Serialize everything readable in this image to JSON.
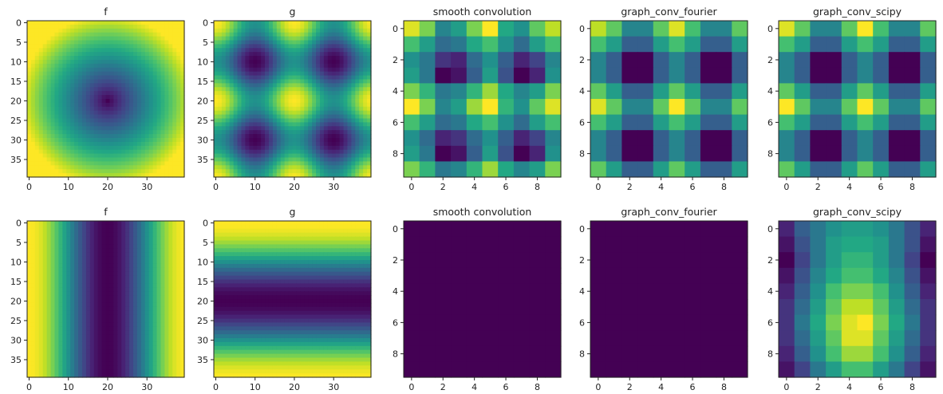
{
  "chart_data": [
    {
      "type": "heatmap",
      "title": "f",
      "rows": 40,
      "cols": 40,
      "pattern": "radial",
      "xticks": [
        0,
        10,
        20,
        30
      ],
      "yticks": [
        0,
        5,
        10,
        15,
        20,
        25,
        30,
        35
      ]
    },
    {
      "type": "heatmap",
      "title": "g",
      "rows": 40,
      "cols": 40,
      "pattern": "egg",
      "xticks": [
        0,
        10,
        20,
        30
      ],
      "yticks": [
        0,
        5,
        10,
        15,
        20,
        25,
        30,
        35
      ]
    },
    {
      "type": "heatmap",
      "title": "smooth convolution",
      "rows": 10,
      "cols": 10,
      "pattern": "grid",
      "values": [
        [
          0.95,
          0.8,
          0.45,
          0.55,
          0.8,
          1.0,
          0.6,
          0.5,
          0.75,
          0.9
        ],
        [
          0.7,
          0.55,
          0.35,
          0.4,
          0.6,
          0.7,
          0.5,
          0.35,
          0.55,
          0.7
        ],
        [
          0.5,
          0.4,
          0.15,
          0.1,
          0.35,
          0.5,
          0.3,
          0.1,
          0.2,
          0.45
        ],
        [
          0.55,
          0.4,
          0.0,
          0.05,
          0.3,
          0.55,
          0.25,
          0.0,
          0.1,
          0.5
        ],
        [
          0.8,
          0.65,
          0.4,
          0.45,
          0.65,
          0.85,
          0.6,
          0.45,
          0.55,
          0.8
        ],
        [
          1.0,
          0.8,
          0.45,
          0.55,
          0.85,
          1.0,
          0.65,
          0.5,
          0.75,
          0.95
        ],
        [
          0.7,
          0.55,
          0.35,
          0.4,
          0.6,
          0.7,
          0.5,
          0.35,
          0.55,
          0.7
        ],
        [
          0.5,
          0.35,
          0.1,
          0.15,
          0.35,
          0.5,
          0.3,
          0.1,
          0.2,
          0.45
        ],
        [
          0.55,
          0.4,
          0.0,
          0.05,
          0.3,
          0.55,
          0.25,
          0.0,
          0.1,
          0.5
        ],
        [
          0.8,
          0.65,
          0.4,
          0.45,
          0.65,
          0.85,
          0.6,
          0.45,
          0.55,
          0.8
        ]
      ],
      "xticks": [
        0,
        2,
        4,
        6,
        8
      ],
      "yticks": [
        0,
        2,
        4,
        6,
        8
      ]
    },
    {
      "type": "heatmap",
      "title": "graph_conv_fourier",
      "rows": 10,
      "cols": 10,
      "pattern": "grid",
      "values": [
        [
          0.9,
          0.75,
          0.45,
          0.45,
          0.75,
          0.95,
          0.7,
          0.45,
          0.45,
          0.75
        ],
        [
          0.7,
          0.55,
          0.3,
          0.3,
          0.55,
          0.7,
          0.55,
          0.3,
          0.3,
          0.55
        ],
        [
          0.45,
          0.3,
          0.0,
          0.0,
          0.3,
          0.45,
          0.3,
          0.0,
          0.0,
          0.3
        ],
        [
          0.45,
          0.3,
          0.0,
          0.0,
          0.3,
          0.45,
          0.3,
          0.0,
          0.0,
          0.3
        ],
        [
          0.75,
          0.55,
          0.3,
          0.3,
          0.55,
          0.75,
          0.55,
          0.3,
          0.3,
          0.55
        ],
        [
          0.95,
          0.75,
          0.45,
          0.45,
          0.75,
          1.0,
          0.75,
          0.45,
          0.45,
          0.75
        ],
        [
          0.7,
          0.55,
          0.3,
          0.3,
          0.55,
          0.7,
          0.55,
          0.3,
          0.3,
          0.55
        ],
        [
          0.45,
          0.3,
          0.0,
          0.0,
          0.3,
          0.45,
          0.3,
          0.0,
          0.0,
          0.3
        ],
        [
          0.45,
          0.3,
          0.0,
          0.0,
          0.3,
          0.45,
          0.3,
          0.0,
          0.0,
          0.3
        ],
        [
          0.75,
          0.55,
          0.3,
          0.3,
          0.55,
          0.75,
          0.55,
          0.3,
          0.3,
          0.55
        ]
      ],
      "xticks": [
        0,
        2,
        4,
        6,
        8
      ],
      "yticks": [
        0,
        2,
        4,
        6,
        8
      ]
    },
    {
      "type": "heatmap",
      "title": "graph_conv_scipy",
      "rows": 10,
      "cols": 10,
      "pattern": "grid",
      "values": [
        [
          0.95,
          0.75,
          0.45,
          0.45,
          0.75,
          1.0,
          0.7,
          0.45,
          0.45,
          0.75
        ],
        [
          0.7,
          0.55,
          0.3,
          0.3,
          0.55,
          0.7,
          0.55,
          0.3,
          0.3,
          0.55
        ],
        [
          0.45,
          0.3,
          0.0,
          0.0,
          0.3,
          0.45,
          0.3,
          0.0,
          0.0,
          0.3
        ],
        [
          0.45,
          0.3,
          0.0,
          0.0,
          0.3,
          0.45,
          0.3,
          0.0,
          0.0,
          0.3
        ],
        [
          0.75,
          0.55,
          0.3,
          0.3,
          0.55,
          0.75,
          0.55,
          0.3,
          0.3,
          0.55
        ],
        [
          1.0,
          0.75,
          0.45,
          0.45,
          0.75,
          1.0,
          0.75,
          0.45,
          0.45,
          0.75
        ],
        [
          0.7,
          0.55,
          0.3,
          0.3,
          0.55,
          0.7,
          0.55,
          0.3,
          0.3,
          0.55
        ],
        [
          0.45,
          0.3,
          0.0,
          0.0,
          0.3,
          0.45,
          0.3,
          0.0,
          0.0,
          0.3
        ],
        [
          0.45,
          0.3,
          0.0,
          0.0,
          0.3,
          0.45,
          0.3,
          0.0,
          0.0,
          0.3
        ],
        [
          0.75,
          0.55,
          0.3,
          0.3,
          0.55,
          0.75,
          0.55,
          0.3,
          0.3,
          0.55
        ]
      ],
      "xticks": [
        0,
        2,
        4,
        6,
        8
      ],
      "yticks": [
        0,
        2,
        4,
        6,
        8
      ]
    },
    {
      "type": "heatmap",
      "title": "f",
      "rows": 40,
      "cols": 40,
      "pattern": "vband",
      "xticks": [
        0,
        10,
        20,
        30
      ],
      "yticks": [
        0,
        5,
        10,
        15,
        20,
        25,
        30,
        35
      ]
    },
    {
      "type": "heatmap",
      "title": "g",
      "rows": 40,
      "cols": 40,
      "pattern": "hband",
      "xticks": [
        0,
        10,
        20,
        30
      ],
      "yticks": [
        0,
        5,
        10,
        15,
        20,
        25,
        30,
        35
      ]
    },
    {
      "type": "heatmap",
      "title": "smooth convolution",
      "rows": 10,
      "cols": 10,
      "pattern": "constant",
      "value": 0.0,
      "xticks": [
        0,
        2,
        4,
        6,
        8
      ],
      "yticks": [
        0,
        2,
        4,
        6,
        8
      ]
    },
    {
      "type": "heatmap",
      "title": "graph_conv_fourier",
      "rows": 10,
      "cols": 10,
      "pattern": "constant",
      "value": 0.0,
      "xticks": [
        0,
        2,
        4,
        6,
        8
      ],
      "yticks": [
        0,
        2,
        4,
        6,
        8
      ]
    },
    {
      "type": "heatmap",
      "title": "graph_conv_scipy",
      "rows": 10,
      "cols": 10,
      "pattern": "grid",
      "values": [
        [
          0.1,
          0.3,
          0.4,
          0.5,
          0.55,
          0.55,
          0.5,
          0.4,
          0.25,
          0.1
        ],
        [
          0.05,
          0.25,
          0.4,
          0.55,
          0.6,
          0.6,
          0.55,
          0.4,
          0.25,
          0.05
        ],
        [
          0.0,
          0.2,
          0.4,
          0.55,
          0.65,
          0.65,
          0.55,
          0.4,
          0.2,
          0.0
        ],
        [
          0.05,
          0.25,
          0.45,
          0.6,
          0.7,
          0.7,
          0.6,
          0.45,
          0.25,
          0.05
        ],
        [
          0.1,
          0.3,
          0.5,
          0.7,
          0.8,
          0.8,
          0.7,
          0.5,
          0.3,
          0.1
        ],
        [
          0.15,
          0.35,
          0.55,
          0.75,
          0.9,
          0.9,
          0.75,
          0.55,
          0.35,
          0.15
        ],
        [
          0.15,
          0.4,
          0.6,
          0.8,
          0.95,
          1.0,
          0.8,
          0.6,
          0.4,
          0.15
        ],
        [
          0.15,
          0.35,
          0.55,
          0.75,
          0.95,
          0.95,
          0.75,
          0.55,
          0.35,
          0.15
        ],
        [
          0.1,
          0.3,
          0.5,
          0.7,
          0.85,
          0.85,
          0.7,
          0.5,
          0.3,
          0.1
        ],
        [
          0.05,
          0.2,
          0.4,
          0.55,
          0.7,
          0.7,
          0.55,
          0.4,
          0.2,
          0.05
        ]
      ],
      "xticks": [
        0,
        2,
        4,
        6,
        8
      ],
      "yticks": [
        0,
        2,
        4,
        6,
        8
      ]
    }
  ]
}
